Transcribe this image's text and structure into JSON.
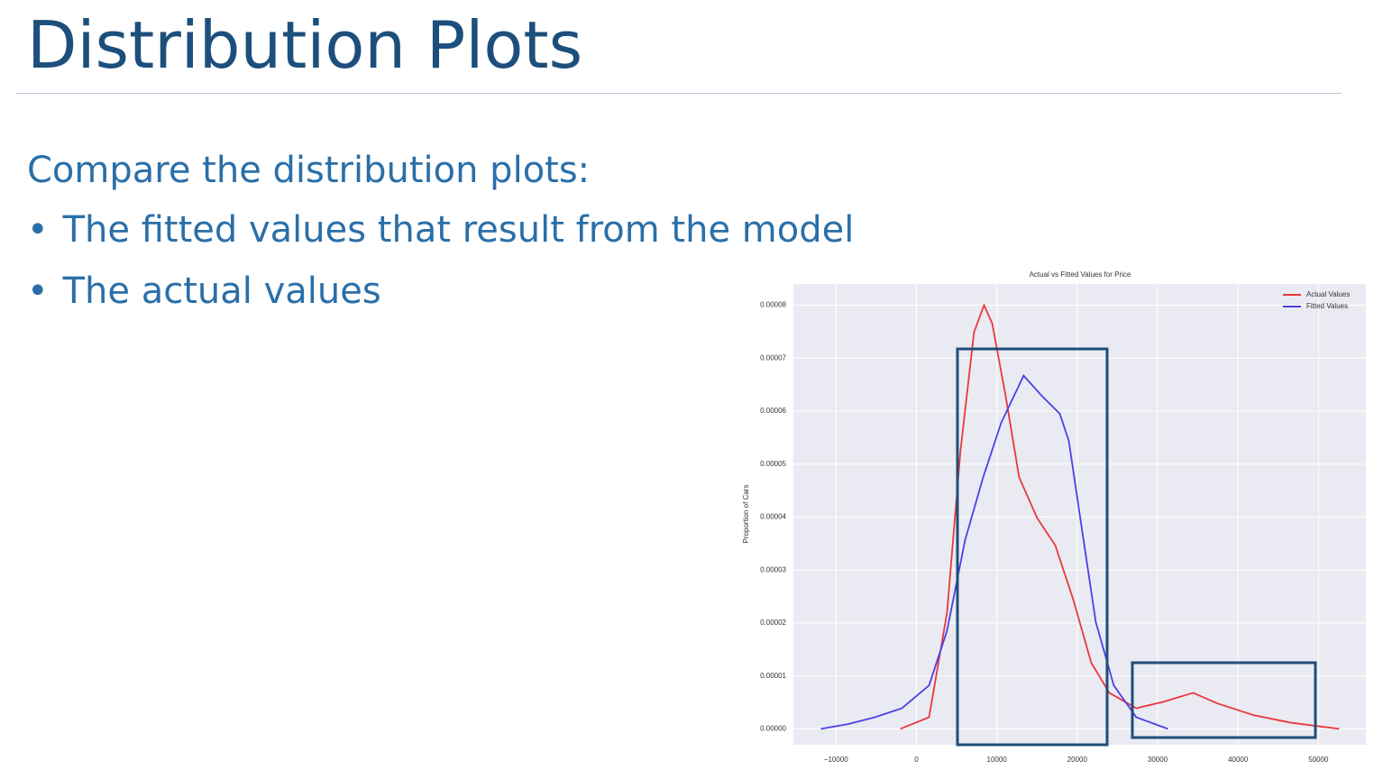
{
  "slide": {
    "title": "Distribution Plots",
    "intro": "Compare the distribution plots:",
    "bullets": [
      "The fitted values that result from the model",
      "The actual values"
    ]
  },
  "chart_data": {
    "type": "line",
    "title": "Actual vs Fitted Values for Price",
    "ylabel": "Proportion of Cars",
    "xlim": [
      -15300,
      55900
    ],
    "ylim": [
      -3e-06,
      8.4e-05
    ],
    "xticks": [
      {
        "value": -10000,
        "label": "−10000"
      },
      0,
      10000,
      20000,
      30000,
      40000,
      50000
    ],
    "yticks": [
      {
        "value": 0,
        "label": "0.00000"
      },
      {
        "value": 1e-05,
        "label": "0.00001"
      },
      {
        "value": 2e-05,
        "label": "0.00002"
      },
      {
        "value": 3e-05,
        "label": "0.00003"
      },
      {
        "value": 4e-05,
        "label": "0.00004"
      },
      {
        "value": 5e-05,
        "label": "0.00005"
      },
      {
        "value": 6e-05,
        "label": "0.00006"
      },
      {
        "value": 7e-05,
        "label": "0.00007"
      },
      {
        "value": 8e-05,
        "label": "0.00008"
      }
    ],
    "grid": true,
    "legend": "upper right",
    "series": [
      {
        "name": "Actual Values",
        "color": "#e8383d",
        "x": [
          -2000,
          1570,
          3810,
          5490,
          7170,
          8410,
          9420,
          11100,
          12780,
          15020,
          17260,
          19510,
          21750,
          23990,
          27350,
          30720,
          34420,
          37440,
          41930,
          46410,
          52580
        ],
        "values": [
          0,
          2.2e-06,
          2.19e-05,
          5.26e-05,
          7.49e-05,
          8e-05,
          7.66e-05,
          6.29e-05,
          4.75e-05,
          3.98e-05,
          3.47e-05,
          2.44e-05,
          1.25e-05,
          6.8e-06,
          3.9e-06,
          5.1e-06,
          6.8e-06,
          4.8e-06,
          2.6e-06,
          1.2e-06,
          0
        ]
      },
      {
        "name": "Fitted Values",
        "color": "#4a3fe8",
        "x": [
          -11880,
          -8520,
          -5160,
          -1790,
          1570,
          3810,
          6050,
          8300,
          10540,
          13340,
          15580,
          17830,
          18950,
          20630,
          22310,
          24550,
          27350,
          31280
        ],
        "values": [
          0,
          9e-07,
          2.2e-06,
          3.9e-06,
          8.2e-06,
          1.85e-05,
          3.56e-05,
          4.75e-05,
          5.78e-05,
          6.67e-05,
          6.29e-05,
          5.95e-05,
          5.44e-05,
          3.73e-05,
          2.02e-05,
          8.2e-06,
          2.2e-06,
          0
        ]
      }
    ]
  }
}
